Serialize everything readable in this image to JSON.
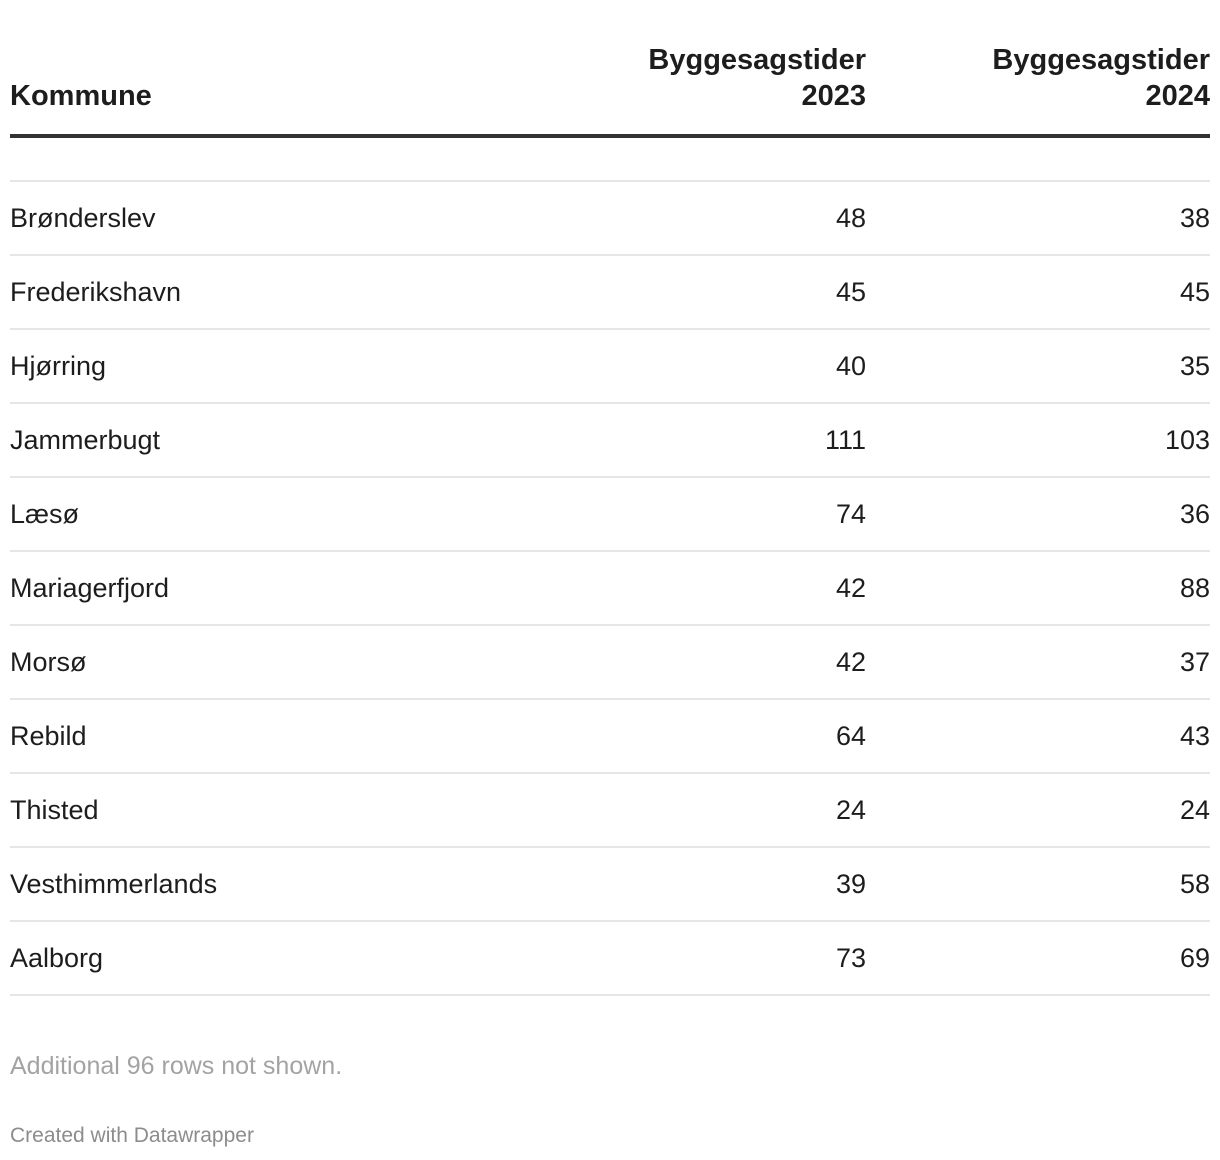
{
  "chart_data": {
    "type": "table",
    "columns": [
      {
        "header_lines": [
          "Kommune"
        ]
      },
      {
        "header_lines": [
          "Byggesagstider",
          "2023"
        ]
      },
      {
        "header_lines": [
          "Byggesagstider",
          "2024"
        ]
      }
    ],
    "rows": [
      {
        "kommune": "Brønderslev",
        "v2023": "48",
        "v2024": "38"
      },
      {
        "kommune": "Frederikshavn",
        "v2023": "45",
        "v2024": "45"
      },
      {
        "kommune": "Hjørring",
        "v2023": "40",
        "v2024": "35"
      },
      {
        "kommune": "Jammerbugt",
        "v2023": "111",
        "v2024": "103"
      },
      {
        "kommune": "Læsø",
        "v2023": "74",
        "v2024": "36"
      },
      {
        "kommune": "Mariagerfjord",
        "v2023": "42",
        "v2024": "88"
      },
      {
        "kommune": "Morsø",
        "v2023": "42",
        "v2024": "37"
      },
      {
        "kommune": "Rebild",
        "v2023": "64",
        "v2024": "43"
      },
      {
        "kommune": "Thisted",
        "v2023": "24",
        "v2024": "24"
      },
      {
        "kommune": "Vesthimmerlands",
        "v2023": "39",
        "v2024": "58"
      },
      {
        "kommune": "Aalborg",
        "v2023": "73",
        "v2024": "69"
      }
    ],
    "footer_note": "Additional 96 rows not shown.",
    "credit": "Created with Datawrapper"
  }
}
